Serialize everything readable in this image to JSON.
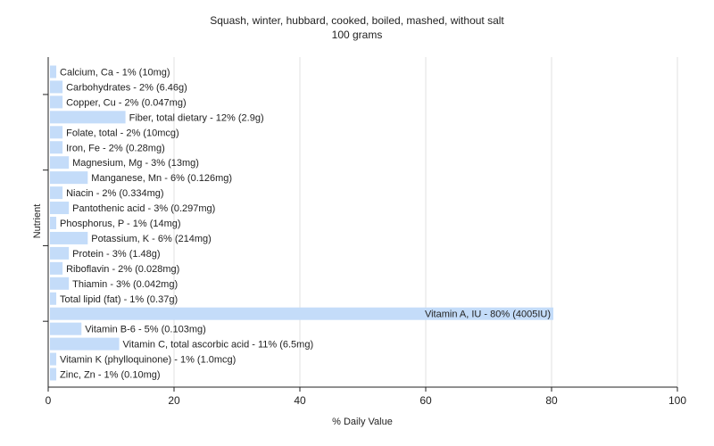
{
  "chart_data": {
    "type": "bar",
    "orientation": "horizontal",
    "title": "Squash, winter, hubbard, cooked, boiled, mashed, without salt",
    "subtitle": "100 grams",
    "xlabel": "% Daily Value",
    "ylabel": "Nutrient",
    "xlim": [
      0,
      100
    ],
    "xticks": [
      0,
      20,
      40,
      60,
      80,
      100
    ],
    "grid": true,
    "bar_color": "#c4dcf9",
    "categories": [
      "Calcium, Ca",
      "Carbohydrates",
      "Copper, Cu",
      "Fiber, total dietary",
      "Folate, total",
      "Iron, Fe",
      "Magnesium, Mg",
      "Manganese, Mn",
      "Niacin",
      "Pantothenic acid",
      "Phosphorus, P",
      "Potassium, K",
      "Protein",
      "Riboflavin",
      "Thiamin",
      "Total lipid (fat)",
      "Vitamin A, IU",
      "Vitamin B-6",
      "Vitamin C, total ascorbic acid",
      "Vitamin K (phylloquinone)",
      "Zinc, Zn"
    ],
    "values": [
      1,
      2,
      2,
      12,
      2,
      2,
      3,
      6,
      2,
      3,
      1,
      6,
      3,
      2,
      3,
      1,
      80,
      5,
      11,
      1,
      1
    ],
    "labels": [
      "Calcium, Ca - 1% (10mg)",
      "Carbohydrates - 2% (6.46g)",
      "Copper, Cu - 2% (0.047mg)",
      "Fiber, total dietary - 12% (2.9g)",
      "Folate, total - 2% (10mcg)",
      "Iron, Fe - 2% (0.28mg)",
      "Magnesium, Mg - 3% (13mg)",
      "Manganese, Mn - 6% (0.126mg)",
      "Niacin - 2% (0.334mg)",
      "Pantothenic acid - 3% (0.297mg)",
      "Phosphorus, P - 1% (14mg)",
      "Potassium, K - 6% (214mg)",
      "Protein - 3% (1.48g)",
      "Riboflavin - 2% (0.028mg)",
      "Thiamin - 3% (0.042mg)",
      "Total lipid (fat) - 1% (0.37g)",
      "Vitamin A, IU - 80% (4005IU)",
      "Vitamin B-6 - 5% (0.103mg)",
      "Vitamin C, total ascorbic acid - 11% (6.5mg)",
      "Vitamin K (phylloquinone) - 1% (1.0mcg)",
      "Zinc, Zn - 1% (0.10mg)"
    ]
  }
}
